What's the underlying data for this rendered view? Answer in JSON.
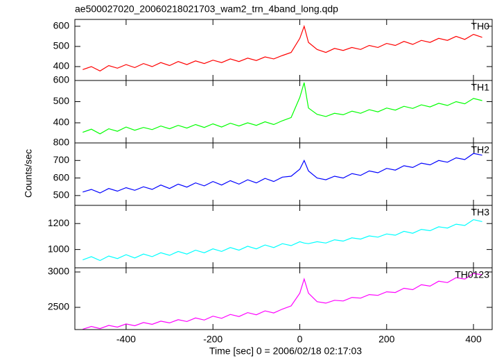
{
  "chart_data": {
    "type": "line",
    "title": "ae500027020_20060218021703_wam2_trn_4band_long.qdp",
    "x_label": "Time [sec] 0 = 2006/02/18 02:17:03",
    "y_label": "Counts/sec",
    "x": [
      -500,
      -480,
      -460,
      -440,
      -420,
      -400,
      -380,
      -360,
      -340,
      -320,
      -300,
      -280,
      -260,
      -240,
      -220,
      -200,
      -180,
      -160,
      -140,
      -120,
      -100,
      -80,
      -60,
      -40,
      -20,
      0,
      10,
      20,
      40,
      60,
      80,
      100,
      120,
      140,
      160,
      180,
      200,
      220,
      240,
      260,
      280,
      300,
      320,
      340,
      360,
      380,
      400,
      420
    ],
    "xlim": [
      -518,
      443
    ],
    "xticks": [
      -400,
      -200,
      0,
      200,
      400
    ],
    "series": [
      {
        "name": "TH0",
        "color": "#ff0000",
        "ylim": [
          331,
          634
        ],
        "yticks": [
          400,
          500,
          600
        ],
        "values": [
          385,
          400,
          378,
          405,
          392,
          410,
          395,
          415,
          400,
          420,
          405,
          425,
          410,
          428,
          415,
          432,
          420,
          438,
          425,
          442,
          430,
          448,
          438,
          455,
          470,
          540,
          600,
          520,
          485,
          470,
          490,
          480,
          495,
          485,
          505,
          495,
          515,
          505,
          525,
          510,
          530,
          520,
          540,
          530,
          550,
          535,
          560,
          545
        ]
      },
      {
        "name": "TH1",
        "color": "#00ff00",
        "ylim": [
          305,
          600
        ],
        "yticks": [
          400,
          500,
          600
        ],
        "values": [
          355,
          370,
          348,
          372,
          360,
          380,
          365,
          378,
          368,
          385,
          372,
          388,
          375,
          392,
          378,
          395,
          380,
          398,
          385,
          400,
          388,
          405,
          392,
          410,
          425,
          520,
          590,
          470,
          440,
          430,
          445,
          438,
          455,
          445,
          462,
          452,
          470,
          460,
          478,
          468,
          485,
          475,
          492,
          482,
          500,
          490,
          515,
          505
        ]
      },
      {
        "name": "TH2",
        "color": "#0000ff",
        "ylim": [
          444,
          800
        ],
        "yticks": [
          500,
          600,
          700,
          800
        ],
        "values": [
          520,
          535,
          515,
          540,
          525,
          545,
          530,
          550,
          535,
          560,
          540,
          565,
          548,
          572,
          555,
          580,
          560,
          585,
          565,
          590,
          572,
          598,
          580,
          605,
          610,
          650,
          700,
          640,
          600,
          590,
          610,
          600,
          625,
          615,
          640,
          630,
          655,
          645,
          670,
          660,
          685,
          675,
          700,
          690,
          715,
          705,
          740,
          730
        ]
      },
      {
        "name": "TH3",
        "color": "#00ffff",
        "ylim": [
          859,
          1340
        ],
        "yticks": [
          1000,
          1200
        ],
        "values": [
          920,
          945,
          915,
          950,
          930,
          960,
          935,
          965,
          945,
          975,
          955,
          985,
          965,
          995,
          975,
          1005,
          985,
          1015,
          995,
          1025,
          1005,
          1035,
          1015,
          1045,
          1030,
          1060,
          1050,
          1045,
          1060,
          1050,
          1075,
          1065,
          1090,
          1080,
          1105,
          1095,
          1120,
          1110,
          1140,
          1125,
          1155,
          1145,
          1175,
          1165,
          1195,
          1185,
          1230,
          1215
        ]
      },
      {
        "name": "TH0123",
        "color": "#ff00ff",
        "ylim": [
          2186,
          3059
        ],
        "yticks": [
          2500,
          3000
        ],
        "values": [
          2190,
          2230,
          2200,
          2245,
          2220,
          2265,
          2240,
          2285,
          2260,
          2305,
          2280,
          2325,
          2300,
          2350,
          2320,
          2375,
          2345,
          2400,
          2370,
          2425,
          2395,
          2450,
          2420,
          2475,
          2520,
          2700,
          2900,
          2700,
          2580,
          2560,
          2600,
          2590,
          2640,
          2630,
          2680,
          2670,
          2720,
          2710,
          2770,
          2750,
          2820,
          2800,
          2870,
          2850,
          2920,
          2900,
          2980,
          2960
        ]
      }
    ]
  }
}
